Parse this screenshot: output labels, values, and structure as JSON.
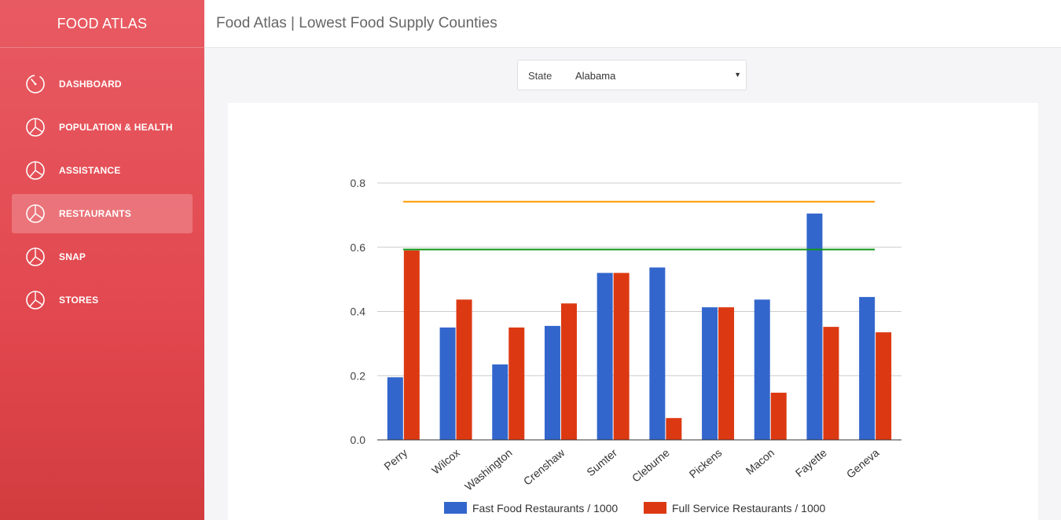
{
  "sidebar": {
    "brand": "FOOD ATLAS",
    "items": [
      {
        "label": "DASHBOARD",
        "icon": "dashboard-gauge-icon",
        "active": false
      },
      {
        "label": "POPULATION & HEALTH",
        "icon": "pie-chart-icon",
        "active": false
      },
      {
        "label": "ASSISTANCE",
        "icon": "pie-chart-icon",
        "active": false
      },
      {
        "label": "RESTAURANTS",
        "icon": "pie-chart-icon",
        "active": true
      },
      {
        "label": "SNAP",
        "icon": "pie-chart-icon",
        "active": false
      },
      {
        "label": "STORES",
        "icon": "pie-chart-icon",
        "active": false
      }
    ]
  },
  "header": {
    "title": "Food Atlas | Lowest Food Supply Counties"
  },
  "state_select": {
    "label": "State",
    "value": "Alabama"
  },
  "chart_data": {
    "type": "bar",
    "categories": [
      "Perry",
      "Wilcox",
      "Washington",
      "Crenshaw",
      "Sumter",
      "Cleburne",
      "Pickens",
      "Macon",
      "Fayette",
      "Geneva"
    ],
    "series": [
      {
        "name": "Fast Food Restaurants / 1000",
        "color": "#3366cc",
        "values": [
          0.195,
          0.35,
          0.235,
          0.355,
          0.52,
          0.537,
          0.413,
          0.437,
          0.705,
          0.445
        ]
      },
      {
        "name": "Full Service Restaurants / 1000",
        "color": "#dc3912",
        "values": [
          0.59,
          0.437,
          0.35,
          0.425,
          0.52,
          0.068,
          0.413,
          0.147,
          0.352,
          0.335
        ]
      }
    ],
    "reference_lines": [
      {
        "value": 0.742,
        "color": "#ff9900"
      },
      {
        "value": 0.593,
        "color": "#109618"
      }
    ],
    "yticks": [
      "0.0",
      "0.2",
      "0.4",
      "0.6",
      "0.8"
    ],
    "ylim": [
      0,
      0.8
    ],
    "grid": true,
    "legend": "bottom"
  }
}
